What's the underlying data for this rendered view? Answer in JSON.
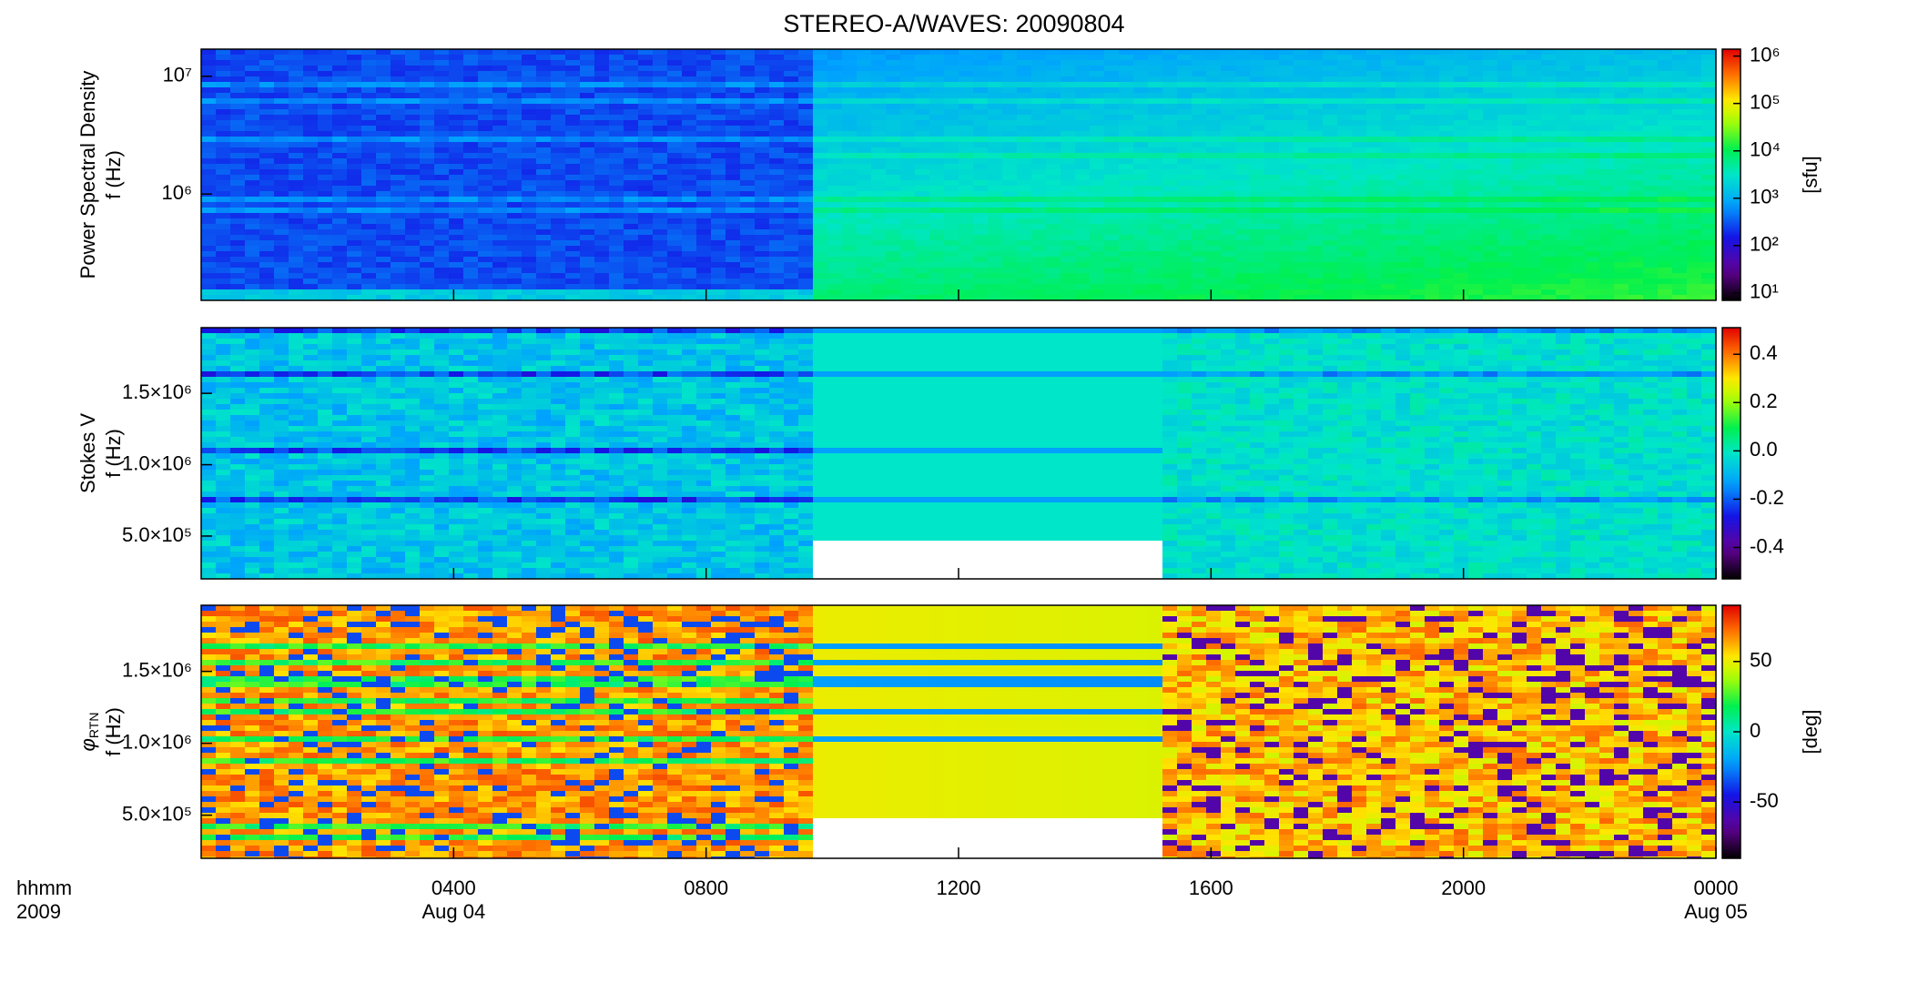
{
  "title": "STEREO-A/WAVES: 20090804",
  "chart_data": [
    {
      "type": "spectrogram",
      "ylabel": [
        "Power Spectral Density",
        "f (Hz)"
      ],
      "log_y": true,
      "ylim": [
        125000,
        17000000
      ],
      "yticks": [
        {
          "value": 1000000,
          "label": "10⁶"
        },
        {
          "value": 10000000,
          "label": "10⁷"
        }
      ],
      "xlim": [
        0,
        24
      ],
      "colorbar": {
        "label": "[sfu]",
        "log": true,
        "lim": [
          7,
          1400000
        ],
        "ticks": [
          {
            "value": 10,
            "label": "10¹"
          },
          {
            "value": 100,
            "label": "10²"
          },
          {
            "value": 1000,
            "label": "10³"
          },
          {
            "value": 10000,
            "label": "10⁴"
          },
          {
            "value": 100000,
            "label": "10⁵"
          },
          {
            "value": 1000000,
            "label": "10⁶"
          }
        ]
      }
    },
    {
      "type": "spectrogram",
      "ylabel": [
        "Stokes V",
        "f (Hz)"
      ],
      "log_y": false,
      "ylim": [
        200000,
        1960000
      ],
      "yticks": [
        {
          "value": 500000,
          "label": "5.0×10⁵"
        },
        {
          "value": 1000000,
          "label": "1.0×10⁶"
        },
        {
          "value": 1500000,
          "label": "1.5×10⁶"
        }
      ],
      "xlim": [
        0,
        24
      ],
      "colorbar": {
        "log": false,
        "lim": [
          -0.53,
          0.51
        ],
        "ticks": [
          -0.4,
          -0.2,
          {
            "value": 0,
            "label": "0.0"
          },
          0.2,
          0.4
        ]
      }
    },
    {
      "type": "spectrogram",
      "ylabel": [
        {
          "text": "φ",
          "subscript": "RTN"
        },
        "f (Hz)"
      ],
      "log_y": false,
      "ylim": [
        200000,
        1960000
      ],
      "yticks": [
        {
          "value": 500000,
          "label": "5.0×10⁵"
        },
        {
          "value": 1000000,
          "label": "1.0×10⁶"
        },
        {
          "value": 1500000,
          "label": "1.5×10⁶"
        }
      ],
      "xlim": [
        0,
        24
      ],
      "xticks": [
        {
          "value": 4,
          "label": "0400"
        },
        {
          "value": 8,
          "label": "0800"
        },
        {
          "value": 12,
          "label": "1200"
        },
        {
          "value": 16,
          "label": "1600"
        },
        {
          "value": 20,
          "label": "2000"
        },
        {
          "value": 24,
          "label": "0000"
        }
      ],
      "date_labels": [
        {
          "value": 4,
          "label": "Aug 04"
        },
        {
          "value": 24,
          "label": "Aug 05"
        }
      ],
      "corner_labels": [
        "hhmm",
        "2009"
      ],
      "colorbar": {
        "label": "[deg]",
        "log": false,
        "lim": [
          -90,
          90
        ],
        "ticks": [
          -50,
          0,
          50
        ]
      }
    }
  ]
}
